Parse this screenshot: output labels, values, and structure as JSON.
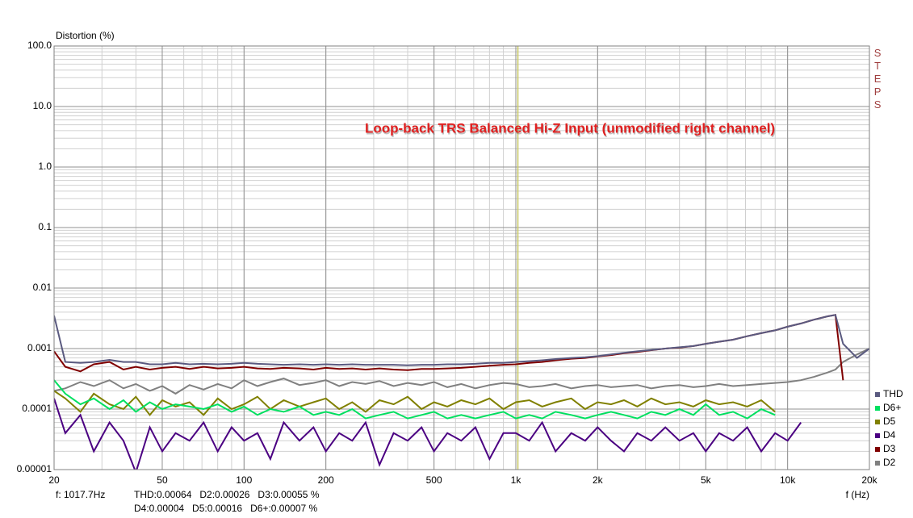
{
  "chart_data": {
    "type": "line",
    "annotation": "Loop-back TRS Balanced Hi-Z Input (unmodified right channel)",
    "ylabel": "Distortion (%)",
    "xlabel": "f (Hz)",
    "watermark": "STEPS",
    "log_x": true,
    "log_y": true,
    "grid": true,
    "minor_grid": true,
    "legend": "right-bottom",
    "xlim": [
      20,
      20000
    ],
    "ylim": [
      1e-05,
      100
    ],
    "xticks": [
      20,
      50,
      100,
      200,
      500,
      {
        "value": 1000,
        "label": "1k"
      },
      {
        "value": 2000,
        "label": "2k"
      },
      {
        "value": 5000,
        "label": "5k"
      },
      {
        "value": 10000,
        "label": "10k"
      },
      {
        "value": 20000,
        "label": "20k"
      }
    ],
    "yticks": [
      {
        "value": 100,
        "label": "100.0"
      },
      {
        "value": 10,
        "label": "10.0"
      },
      {
        "value": 1,
        "label": "1.0"
      },
      0.1,
      0.01,
      0.001,
      0.0001,
      1e-05
    ],
    "cursor": 1017.7,
    "cursor_color": "#c8c864",
    "readout": {
      "frequency": "f: 1017.7Hz",
      "line1": "THD:0.00064   D2:0.00026   D3:0.00055 %",
      "line2": "D4:0.00004   D5:0.00016   D6+:0.00007 %"
    },
    "x": [
      20,
      22,
      25,
      28,
      32,
      36,
      40,
      45,
      50,
      56,
      63,
      71,
      80,
      90,
      100,
      112,
      125,
      140,
      160,
      180,
      200,
      224,
      250,
      280,
      315,
      355,
      400,
      450,
      500,
      560,
      630,
      710,
      800,
      900,
      1000,
      1120,
      1250,
      1400,
      1600,
      1800,
      2000,
      2240,
      2500,
      2800,
      3150,
      3550,
      4000,
      4500,
      5000,
      5600,
      6300,
      7100,
      8000,
      9000,
      10000,
      11200,
      12500,
      14000,
      15000,
      16000,
      18000,
      20000
    ],
    "series": [
      {
        "name": "THD",
        "color": "#5a5a80",
        "values": [
          0.0035,
          0.0006,
          0.00058,
          0.0006,
          0.00065,
          0.0006,
          0.0006,
          0.00055,
          0.00055,
          0.00058,
          0.00055,
          0.00056,
          0.00055,
          0.00056,
          0.00058,
          0.00056,
          0.00055,
          0.00054,
          0.00055,
          0.00054,
          0.00055,
          0.00054,
          0.00055,
          0.00054,
          0.00054,
          0.00054,
          0.00053,
          0.00054,
          0.00054,
          0.00055,
          0.00055,
          0.00056,
          0.00058,
          0.00058,
          0.0006,
          0.00062,
          0.00064,
          0.00067,
          0.0007,
          0.00072,
          0.00075,
          0.0008,
          0.00085,
          0.0009,
          0.00095,
          0.001,
          0.00105,
          0.0011,
          0.0012,
          0.0013,
          0.0014,
          0.0016,
          0.0018,
          0.002,
          0.0023,
          0.0026,
          0.003,
          0.0034,
          0.0036,
          0.0012,
          0.0007,
          0.001
        ]
      },
      {
        "name": "D6+",
        "color": "#00e060",
        "values": [
          0.0003,
          0.00018,
          0.00012,
          0.00015,
          0.0001,
          0.00014,
          9e-05,
          0.00013,
          0.0001,
          0.00012,
          0.00011,
          0.0001,
          0.00012,
          9e-05,
          0.00011,
          8e-05,
          0.0001,
          9e-05,
          0.00011,
          8e-05,
          9e-05,
          8e-05,
          0.0001,
          7e-05,
          8e-05,
          9e-05,
          7e-05,
          8e-05,
          9e-05,
          7e-05,
          8e-05,
          7e-05,
          8e-05,
          9e-05,
          7e-05,
          8e-05,
          7e-05,
          9e-05,
          8e-05,
          7e-05,
          8e-05,
          9e-05,
          8e-05,
          7e-05,
          9e-05,
          8e-05,
          0.0001,
          8e-05,
          0.00012,
          8e-05,
          9e-05,
          7e-05,
          0.0001,
          8e-05,
          null,
          null,
          null,
          null,
          null,
          null,
          null,
          null
        ]
      },
      {
        "name": "D5",
        "color": "#808000",
        "values": [
          0.0002,
          0.00015,
          9e-05,
          0.00018,
          0.00012,
          0.0001,
          0.00016,
          8e-05,
          0.00014,
          0.00011,
          0.00013,
          8e-05,
          0.00015,
          0.0001,
          0.00012,
          0.00016,
          0.0001,
          0.00014,
          0.00011,
          0.00013,
          0.00015,
          0.0001,
          0.00013,
          9e-05,
          0.00014,
          0.00012,
          0.00016,
          0.0001,
          0.00013,
          0.00011,
          0.00014,
          0.00012,
          0.00015,
          0.0001,
          0.00013,
          0.00014,
          0.00011,
          0.00013,
          0.00015,
          0.0001,
          0.00013,
          0.00012,
          0.00014,
          0.00011,
          0.00015,
          0.00012,
          0.00013,
          0.00011,
          0.00014,
          0.00012,
          0.00013,
          0.00011,
          0.00014,
          9e-05,
          null,
          null,
          null,
          null,
          null,
          null,
          null,
          null
        ]
      },
      {
        "name": "D4",
        "color": "#4b0082",
        "values": [
          0.00015,
          4e-05,
          8e-05,
          2e-05,
          6e-05,
          3e-05,
          9e-06,
          5e-05,
          2e-05,
          4e-05,
          3e-05,
          6e-05,
          2e-05,
          5e-05,
          3e-05,
          4e-05,
          1.5e-05,
          6e-05,
          3e-05,
          5e-05,
          2e-05,
          4e-05,
          3e-05,
          6e-05,
          1.2e-05,
          4e-05,
          3e-05,
          5e-05,
          2e-05,
          4e-05,
          3e-05,
          5e-05,
          1.5e-05,
          4e-05,
          4e-05,
          3e-05,
          6e-05,
          2e-05,
          4e-05,
          3e-05,
          5e-05,
          3e-05,
          2e-05,
          4e-05,
          3e-05,
          5e-05,
          3e-05,
          4e-05,
          2e-05,
          4e-05,
          3e-05,
          5e-05,
          2e-05,
          4e-05,
          3e-05,
          6e-05,
          null,
          null,
          null,
          null,
          null,
          null
        ]
      },
      {
        "name": "D3",
        "color": "#800000",
        "values": [
          0.0009,
          0.0005,
          0.00042,
          0.00055,
          0.0006,
          0.00045,
          0.0005,
          0.00045,
          0.00048,
          0.0005,
          0.00046,
          0.0005,
          0.00047,
          0.00048,
          0.0005,
          0.00047,
          0.00046,
          0.00048,
          0.00047,
          0.00045,
          0.00048,
          0.00046,
          0.00047,
          0.00045,
          0.00047,
          0.00045,
          0.00044,
          0.00046,
          0.00046,
          0.00047,
          0.00048,
          0.0005,
          0.00052,
          0.00054,
          0.00055,
          0.00058,
          0.0006,
          0.00064,
          0.00068,
          0.0007,
          0.00074,
          0.00078,
          0.00084,
          0.00088,
          0.00094,
          0.001,
          0.00104,
          0.0011,
          0.0012,
          0.0013,
          0.0014,
          0.0016,
          0.0018,
          0.002,
          0.0023,
          0.0026,
          0.003,
          0.0034,
          0.0036,
          0.0003,
          null,
          null
        ]
      },
      {
        "name": "D2",
        "color": "#808080",
        "values": [
          0.0002,
          0.00022,
          0.00028,
          0.00024,
          0.0003,
          0.00022,
          0.00026,
          0.0002,
          0.00024,
          0.00018,
          0.00025,
          0.00021,
          0.00026,
          0.00022,
          0.0003,
          0.00024,
          0.00028,
          0.00032,
          0.00025,
          0.00027,
          0.0003,
          0.00024,
          0.00028,
          0.00026,
          0.00029,
          0.00024,
          0.00027,
          0.00025,
          0.00028,
          0.00023,
          0.00026,
          0.00022,
          0.00025,
          0.00027,
          0.00026,
          0.00023,
          0.00024,
          0.00026,
          0.00022,
          0.00024,
          0.00025,
          0.00023,
          0.00024,
          0.00025,
          0.00022,
          0.00024,
          0.00025,
          0.00023,
          0.00024,
          0.00026,
          0.00024,
          0.00025,
          0.00026,
          0.00027,
          0.00028,
          0.0003,
          0.00034,
          0.0004,
          0.00045,
          0.0006,
          0.0008,
          0.001
        ]
      }
    ]
  }
}
